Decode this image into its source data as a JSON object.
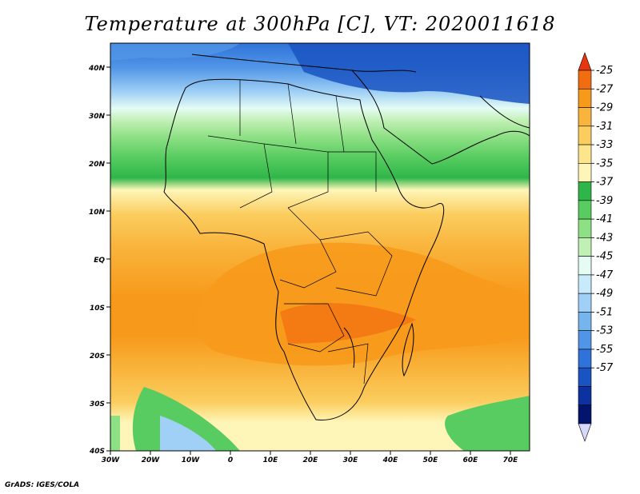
{
  "title": "Temperature at 300hPa [C], VT: 2020011618",
  "credit": "GrADS: IGES/COLA",
  "map": {
    "lon_labels": [
      "30W",
      "20W",
      "10W",
      "0",
      "10E",
      "20E",
      "30E",
      "40E",
      "50E",
      "60E",
      "70E"
    ],
    "lat_labels": [
      "40N",
      "30N",
      "20N",
      "10N",
      "EQ",
      "10S",
      "20S",
      "30S",
      "40S"
    ]
  },
  "colorbar": {
    "labels": [
      "-25",
      "-27",
      "-29",
      "-31",
      "-33",
      "-35",
      "-37",
      "-39",
      "-41",
      "-43",
      "-45",
      "-47",
      "-49",
      "-51",
      "-53",
      "-55",
      "-57"
    ],
    "colors": [
      "#e8360f",
      "#f26d10",
      "#f79a1c",
      "#f9b43c",
      "#fbcd5f",
      "#fde58c",
      "#fef6b8",
      "#2fb64a",
      "#58cc60",
      "#8ee085",
      "#c1f0b4",
      "#e4fcf4",
      "#c8ebfc",
      "#a0d0f5",
      "#76b4ee",
      "#5196e6",
      "#2f73da",
      "#1a53c2",
      "#0b32a0",
      "#03146c",
      "#d8d8f8"
    ]
  }
}
